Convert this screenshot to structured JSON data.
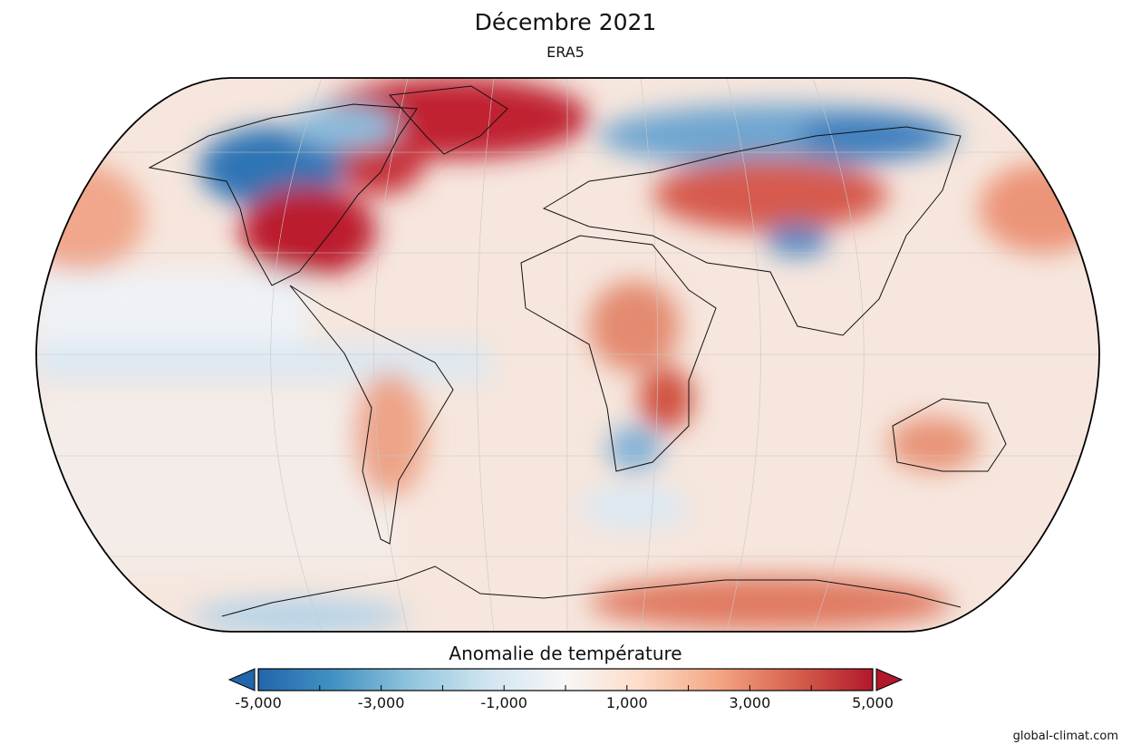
{
  "header": {
    "title": "Décembre 2021",
    "subtitle": "ERA5"
  },
  "colorbar": {
    "title": "Anomalie de température",
    "min": -5000,
    "max": 5000,
    "tick_step": 1000,
    "labels": [
      {
        "value": -5000,
        "text": "-5,000"
      },
      {
        "value": -3000,
        "text": "-3,000"
      },
      {
        "value": -1000,
        "text": "-1,000"
      },
      {
        "value": 1000,
        "text": "1,000"
      },
      {
        "value": 3000,
        "text": "3,000"
      },
      {
        "value": 5000,
        "text": "5,000"
      }
    ],
    "colors": [
      "#2166ac",
      "#4393c3",
      "#92c5de",
      "#d1e5f0",
      "#f7f7f7",
      "#fddbc7",
      "#f4a582",
      "#d6604d",
      "#b2182b"
    ]
  },
  "footer": {
    "credit": "global-climat.com"
  }
}
